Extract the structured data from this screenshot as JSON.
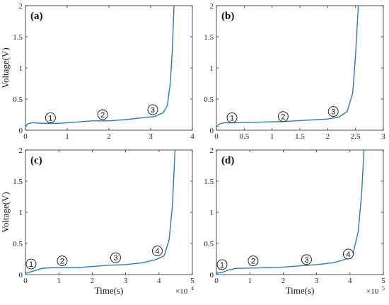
{
  "chart_data": [
    {
      "panel": "(a)",
      "type": "line",
      "xlim": [
        0,
        4
      ],
      "ylim": [
        0,
        2
      ],
      "x_ticks": [
        0,
        1,
        2,
        3,
        4
      ],
      "y_ticks": [
        0,
        0.5,
        1,
        1.5,
        2
      ],
      "x_ticks_text": [
        "0",
        "1",
        "2",
        "3",
        "4"
      ],
      "y_ticks_text": [
        "0",
        "0.5",
        "1",
        "1.5",
        "2"
      ],
      "ylabel": "Voltage(V)",
      "xlabel": "",
      "x_multiplier": "",
      "x_multiplier_exp": "",
      "color": "#2b7bb9",
      "series_points": [
        [
          0,
          0.05
        ],
        [
          0.05,
          0.1
        ],
        [
          0.15,
          0.12
        ],
        [
          0.4,
          0.11
        ],
        [
          0.8,
          0.11
        ],
        [
          1.2,
          0.13
        ],
        [
          1.6,
          0.15
        ],
        [
          2.0,
          0.15
        ],
        [
          2.4,
          0.17
        ],
        [
          2.8,
          0.2
        ],
        [
          3.1,
          0.22
        ],
        [
          3.3,
          0.28
        ],
        [
          3.4,
          0.4
        ],
        [
          3.47,
          0.75
        ],
        [
          3.52,
          1.3
        ],
        [
          3.56,
          2.0
        ]
      ],
      "markers": [
        {
          "label": "1",
          "x": 0.6,
          "y": 0.2
        },
        {
          "label": "2",
          "x": 1.85,
          "y": 0.25
        },
        {
          "label": "3",
          "x": 3.05,
          "y": 0.33
        }
      ]
    },
    {
      "panel": "(b)",
      "type": "line",
      "xlim": [
        0,
        3
      ],
      "ylim": [
        0,
        2
      ],
      "x_ticks": [
        0,
        0.5,
        1,
        1.5,
        2,
        2.5,
        3
      ],
      "y_ticks": [
        0,
        0.5,
        1,
        1.5,
        2
      ],
      "x_ticks_text": [
        "0",
        "0.5",
        "1",
        "1.5",
        "2",
        "2.5",
        "3"
      ],
      "y_ticks_text": [
        "0",
        "0.5",
        "1",
        "1.5",
        "2"
      ],
      "ylabel": "",
      "xlabel": "",
      "x_multiplier": "",
      "x_multiplier_exp": "",
      "color": "#2b7bb9",
      "series_points": [
        [
          0,
          0.05
        ],
        [
          0.05,
          0.1
        ],
        [
          0.15,
          0.12
        ],
        [
          0.4,
          0.12
        ],
        [
          0.8,
          0.13
        ],
        [
          1.2,
          0.14
        ],
        [
          1.6,
          0.16
        ],
        [
          2.0,
          0.18
        ],
        [
          2.2,
          0.21
        ],
        [
          2.35,
          0.3
        ],
        [
          2.45,
          0.6
        ],
        [
          2.5,
          1.2
        ],
        [
          2.55,
          2.0
        ]
      ],
      "markers": [
        {
          "label": "1",
          "x": 0.28,
          "y": 0.2
        },
        {
          "label": "2",
          "x": 1.2,
          "y": 0.22
        },
        {
          "label": "3",
          "x": 2.1,
          "y": 0.3
        }
      ]
    },
    {
      "panel": "(c)",
      "type": "line",
      "xlim": [
        0,
        5
      ],
      "ylim": [
        0,
        2
      ],
      "x_ticks": [
        0,
        1,
        2,
        3,
        4,
        5
      ],
      "y_ticks": [
        0,
        0.5,
        1,
        1.5,
        2
      ],
      "x_ticks_text": [
        "0",
        "1",
        "2",
        "3",
        "4",
        "5"
      ],
      "y_ticks_text": [
        "0",
        "0.5",
        "1",
        "1.5",
        "2"
      ],
      "ylabel": "Voltage(V)",
      "xlabel": "Time(s)",
      "x_multiplier": "×10",
      "x_multiplier_exp": "4",
      "color": "#2b7bb9",
      "series_points": [
        [
          0,
          0.02
        ],
        [
          0.2,
          0.05
        ],
        [
          0.5,
          0.1
        ],
        [
          0.8,
          0.11
        ],
        [
          1.5,
          0.11
        ],
        [
          2.0,
          0.13
        ],
        [
          2.5,
          0.15
        ],
        [
          3.0,
          0.16
        ],
        [
          3.5,
          0.19
        ],
        [
          3.9,
          0.24
        ],
        [
          4.15,
          0.3
        ],
        [
          4.3,
          0.55
        ],
        [
          4.4,
          1.1
        ],
        [
          4.48,
          2.0
        ]
      ],
      "markers": [
        {
          "label": "1",
          "x": 0.17,
          "y": 0.17
        },
        {
          "label": "2",
          "x": 1.1,
          "y": 0.22
        },
        {
          "label": "3",
          "x": 2.7,
          "y": 0.27
        },
        {
          "label": "4",
          "x": 3.95,
          "y": 0.38
        }
      ]
    },
    {
      "panel": "(d)",
      "type": "line",
      "xlim": [
        0,
        5
      ],
      "ylim": [
        0,
        2
      ],
      "x_ticks": [
        0,
        1,
        2,
        3,
        4,
        5
      ],
      "y_ticks": [
        0,
        0.5,
        1,
        1.5,
        2
      ],
      "x_ticks_text": [
        "0",
        "1",
        "2",
        "3",
        "4",
        "5"
      ],
      "y_ticks_text": [
        "0",
        "0.5",
        "1",
        "1.5",
        "2"
      ],
      "ylabel": "",
      "xlabel": "Time(s)",
      "x_multiplier": "×10",
      "x_multiplier_exp": "5",
      "color": "#2b7bb9",
      "series_points": [
        [
          0,
          0.02
        ],
        [
          0.2,
          0.04
        ],
        [
          0.4,
          0.08
        ],
        [
          0.6,
          0.1
        ],
        [
          1.5,
          0.11
        ],
        [
          2.0,
          0.12
        ],
        [
          2.5,
          0.14
        ],
        [
          3.0,
          0.16
        ],
        [
          3.5,
          0.19
        ],
        [
          3.9,
          0.25
        ],
        [
          4.1,
          0.35
        ],
        [
          4.25,
          0.7
        ],
        [
          4.35,
          1.3
        ],
        [
          4.42,
          2.0
        ]
      ],
      "markers": [
        {
          "label": "1",
          "x": 0.17,
          "y": 0.16
        },
        {
          "label": "2",
          "x": 1.1,
          "y": 0.22
        },
        {
          "label": "3",
          "x": 2.7,
          "y": 0.24
        },
        {
          "label": "4",
          "x": 3.95,
          "y": 0.33
        }
      ]
    }
  ]
}
